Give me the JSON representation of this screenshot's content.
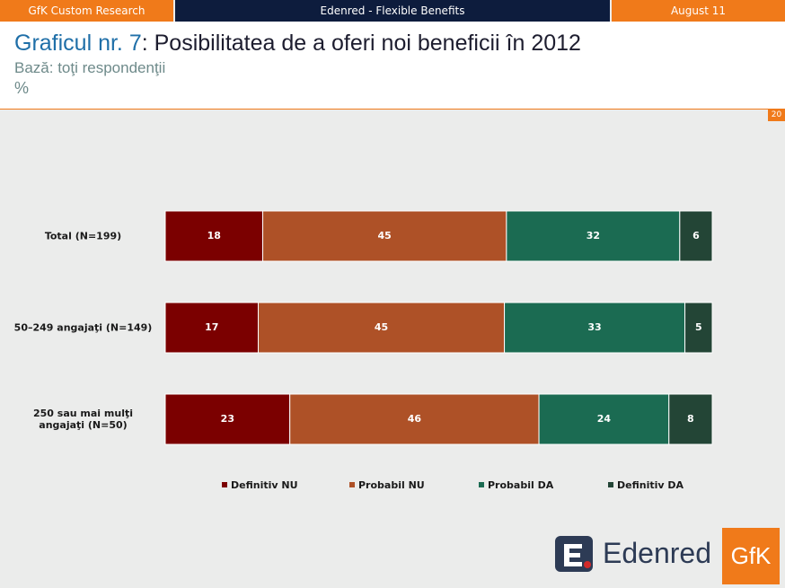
{
  "header": {
    "left": "GfK Custom Research",
    "center": "Edenred - Flexible Benefits",
    "right": "August 11"
  },
  "title": {
    "number": "Graficul nr. 7",
    "text": ": Posibilitatea de a oferi noi beneficii în 2012",
    "base": "Bază: toţi respondenţii",
    "unit": "%"
  },
  "page_number": "20",
  "logos": {
    "edenred": "Edenred",
    "gfk": "GfK"
  },
  "chart_data": {
    "type": "bar",
    "orientation": "horizontal",
    "stacked": true,
    "categories": [
      "Total (N=199)",
      "50–249 angajaţi (N=149)",
      "250 sau mai mulţi angajaţi (N=50)"
    ],
    "series": [
      {
        "name": "Definitiv NU",
        "color": "#7b0000",
        "values": [
          18,
          17,
          23
        ]
      },
      {
        "name": "Probabil NU",
        "color": "#ae5127",
        "values": [
          45,
          45,
          46
        ]
      },
      {
        "name": "Probabil DA",
        "color": "#1b6b52",
        "values": [
          32,
          33,
          24
        ]
      },
      {
        "name": "Definitiv DA",
        "color": "#234536",
        "values": [
          6,
          5,
          8
        ]
      }
    ],
    "legend": "bottom"
  }
}
